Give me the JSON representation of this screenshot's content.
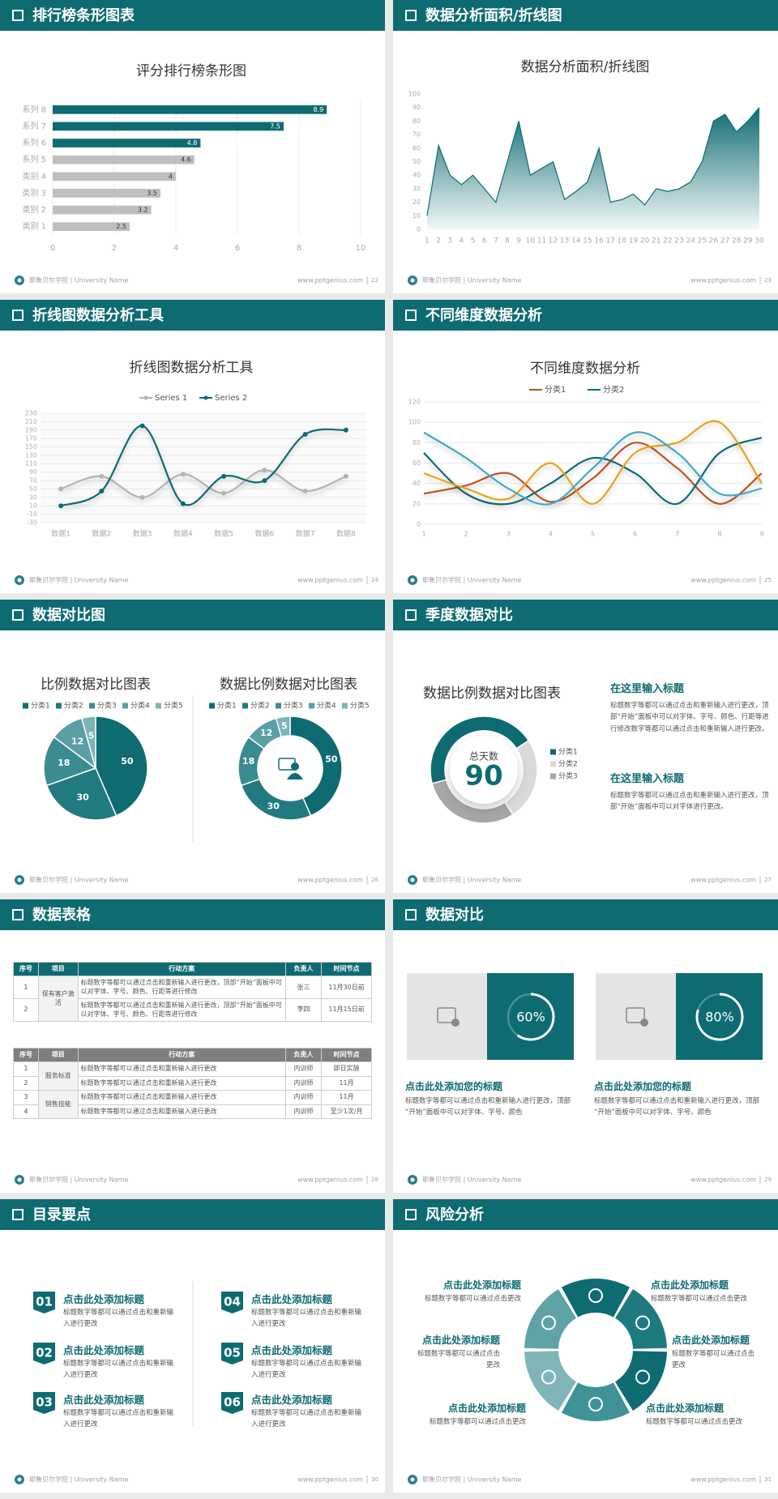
{
  "slides": [
    {
      "title": "排行榜条形图表",
      "footer": {
        "school": "耶鲁贝尔学院 | University Name",
        "url": "www.pptgenius.com",
        "page": "22"
      }
    },
    {
      "title": "数据分析面积/折线图",
      "footer": {
        "school": "耶鲁贝尔学院 | University Name",
        "url": "www.pptgenius.com",
        "page": "23"
      }
    },
    {
      "title": "折线图数据分析工具",
      "footer": {
        "school": "耶鲁贝尔学院 | University Name",
        "url": "www.pptgenius.com",
        "page": "24"
      }
    },
    {
      "title": "不同维度数据分析",
      "footer": {
        "school": "耶鲁贝尔学院 | University Name",
        "url": "www.pptgenius.com",
        "page": "25"
      }
    },
    {
      "title": "数据对比图",
      "footer": {
        "school": "耶鲁贝尔学院 | University Name",
        "url": "www.pptgenius.com",
        "page": "26"
      }
    },
    {
      "title": "季度数据对比",
      "footer": {
        "school": "耶鲁贝尔学院 | University Name",
        "url": "www.pptgenius.com",
        "page": "27"
      }
    },
    {
      "title": "数据表格",
      "footer": {
        "school": "耶鲁贝尔学院 | University Name",
        "url": "www.pptgenius.com",
        "page": "28"
      }
    },
    {
      "title": "数据对比",
      "footer": {
        "school": "耶鲁贝尔学院 | University Name",
        "url": "www.pptgenius.com",
        "page": "29"
      }
    },
    {
      "title": "目录要点",
      "footer": {
        "school": "耶鲁贝尔学院 | University Name",
        "url": "www.pptgenius.com",
        "page": "30"
      }
    },
    {
      "title": "风险分析",
      "footer": {
        "school": "耶鲁贝尔学院 | University Name",
        "url": "www.pptgenius.com",
        "page": "31"
      }
    }
  ],
  "chart_data": [
    {
      "type": "bar",
      "title": "评分排行榜条形图",
      "categories": [
        "系列 8",
        "系列 7",
        "系列 6",
        "系列 5",
        "类别 4",
        "类别 3",
        "类别 2",
        "类别 1"
      ],
      "values": [
        8.9,
        7.5,
        4.8,
        4.6,
        4,
        3.5,
        3.2,
        2.5
      ],
      "colors": [
        "#0e6b72",
        "#0e6b72",
        "#0e6b72",
        "#bfbfbf",
        "#bfbfbf",
        "#bfbfbf",
        "#bfbfbf",
        "#bfbfbf"
      ],
      "xlim": [
        0,
        10
      ],
      "xticks": [
        0,
        2,
        4,
        6,
        8,
        10
      ],
      "grid": true
    },
    {
      "type": "area",
      "title": "数据分析面积/折线图",
      "color": "#0e6b72",
      "x": [
        1,
        2,
        3,
        4,
        5,
        6,
        7,
        8,
        9,
        10,
        11,
        12,
        13,
        14,
        15,
        16,
        17,
        18,
        19,
        20,
        21,
        22,
        23,
        24,
        25,
        26,
        27,
        28,
        29,
        30
      ],
      "values": [
        10,
        62,
        40,
        33,
        40,
        30,
        20,
        50,
        80,
        40,
        45,
        50,
        22,
        28,
        35,
        60,
        20,
        22,
        26,
        18,
        30,
        28,
        30,
        35,
        50,
        80,
        85,
        72,
        80,
        90
      ],
      "xlim": [
        1,
        30
      ],
      "xticks": [
        1,
        2,
        3,
        4,
        5,
        6,
        7,
        8,
        9,
        10,
        11,
        12,
        13,
        14,
        15,
        16,
        17,
        18,
        19,
        20,
        21,
        22,
        23,
        24,
        25,
        26,
        27,
        28,
        29,
        30
      ],
      "ylim": [
        0,
        100
      ],
      "yticks": [
        0,
        10,
        20,
        30,
        40,
        50,
        60,
        70,
        80,
        90,
        100
      ],
      "grid": false
    },
    {
      "type": "line",
      "title": "折线图数据分析工具",
      "categories": [
        "数据1",
        "数据2",
        "数据3",
        "数据4",
        "数据5",
        "数据6",
        "数据7",
        "数据8"
      ],
      "series": [
        {
          "name": "Series 1",
          "color": "#b3b3b3",
          "values": [
            50,
            80,
            30,
            85,
            40,
            95,
            45,
            80
          ]
        },
        {
          "name": "Series 2",
          "color": "#0e6b72",
          "values": [
            10,
            45,
            200,
            15,
            80,
            70,
            180,
            190
          ]
        }
      ],
      "ylim": [
        -30,
        230
      ],
      "yticks": [
        -30,
        -10,
        10,
        30,
        50,
        70,
        90,
        110,
        130,
        150,
        170,
        190,
        210,
        230
      ],
      "grid": true,
      "markers": true
    },
    {
      "type": "line",
      "title": "不同维度数据分析",
      "x": [
        1,
        2,
        3,
        4,
        5,
        6,
        7,
        8,
        9
      ],
      "series": [
        {
          "name": "分类1",
          "color": "#c0511f",
          "values": [
            30,
            38,
            50,
            22,
            45,
            80,
            55,
            20,
            50
          ]
        },
        {
          "name": "分类2",
          "color": "#0e6b72",
          "values": [
            70,
            30,
            20,
            40,
            65,
            50,
            20,
            70,
            85
          ]
        },
        {
          "color": "#e8a21a",
          "values": [
            50,
            35,
            25,
            60,
            20,
            70,
            80,
            100,
            40
          ]
        },
        {
          "color": "#3fa9c8",
          "values": [
            90,
            65,
            35,
            20,
            55,
            90,
            70,
            30,
            35
          ]
        }
      ],
      "xlim": [
        1,
        9
      ],
      "xticks": [
        1,
        2,
        3,
        4,
        5,
        6,
        7,
        8,
        9
      ],
      "ylim": [
        0,
        120
      ],
      "yticks": [
        0,
        20,
        40,
        60,
        80,
        100,
        120
      ],
      "grid": true,
      "markers": false
    },
    {
      "type": "pie",
      "title": "比例数据对比图表",
      "categories": [
        "分类1",
        "分类2",
        "分类3",
        "分类4",
        "分类5"
      ],
      "values": [
        50,
        30,
        18,
        12,
        5
      ],
      "colors": [
        "#0e6b72",
        "#217a80",
        "#3b8c91",
        "#5a9fa3",
        "#7db4b7"
      ],
      "data_labels": true
    },
    {
      "type": "pie",
      "title": "数据比例数据对比图表",
      "categories": [
        "分类1",
        "分类2",
        "分类3",
        "分类4",
        "分类5"
      ],
      "values": [
        50,
        30,
        18,
        12,
        5
      ],
      "colors": [
        "#0e6b72",
        "#217a80",
        "#3b8c91",
        "#5a9fa3",
        "#7db4b7"
      ],
      "data_labels": true
    },
    {
      "type": "pie",
      "title": "数据比例数据对比图表",
      "categories": [
        "分类1",
        "分类2",
        "分类3"
      ],
      "values": [
        45,
        25,
        30
      ],
      "colors": [
        "#0e6b72",
        "#d9d9d9",
        "#a6a6a6"
      ],
      "data_labels": false,
      "center_text": "总天数",
      "center_number": 90
    }
  ],
  "quarter_text": [
    {
      "heading": "在这里输入标题",
      "body": "标题数字等都可以通过点击和重新输入进行更改，顶部“开始”面板中可以对字体、字号、颜色、行距等进行修改数字等都可以通过点击和重新输入进行更改。"
    },
    {
      "heading": "在这里输入标题",
      "body": "标题数字等都可以通过点击和重新输入进行更改，顶部“开始”面板中可以对字体进行更改。"
    }
  ],
  "tables": [
    {
      "headers": [
        "序号",
        "项目",
        "行动方案",
        "负责人",
        "时间节点"
      ],
      "groups": [
        {
          "name": "保有客户激活",
          "rows": [
            [
              "1",
              "标题数字等都可以通过点击和重新输入进行更改，顶部“开始”面板中可以对字体、字号、颜色、行距等进行修改",
              "张三",
              "11月30日前"
            ],
            [
              "2",
              "标题数字等都可以通过点击和重新输入进行更改，顶部“开始”面板中可以对字体、字号、颜色、行距等进行修改",
              "李四",
              "11月15日前"
            ]
          ]
        }
      ]
    },
    {
      "headers": [
        "序号",
        "项目",
        "行动方案",
        "负责人",
        "时间节点"
      ],
      "groups": [
        {
          "name": "服务标准",
          "rows": [
            [
              "1",
              "标题数字等都可以通过点击和重新输入进行更改",
              "内训师",
              "即日实施"
            ],
            [
              "2",
              "标题数字等都可以通过点击和重新输入进行更改",
              "内训师",
              "11月"
            ]
          ]
        },
        {
          "name": "销售技能",
          "rows": [
            [
              "3",
              "标题数字等都可以通过点击和重新输入进行更改",
              "内训师",
              "11月"
            ],
            [
              "4",
              "标题数字等都可以通过点击和重新输入进行更改",
              "内训师",
              "至少1次/月"
            ]
          ]
        }
      ]
    }
  ],
  "compare": [
    {
      "percent": 60,
      "percent_label": "60%",
      "heading": "点击此处添加您的标题",
      "body": "标题数字等都可以通过点击和重新输入进行更改，顶部“开始”面板中可以对字体、字号、颜色"
    },
    {
      "percent": 80,
      "percent_label": "80%",
      "heading": "点击此处添加您的标题",
      "body": "标题数字等都可以通过点击和重新输入进行更改，顶部“开始”面板中可以对字体、字号、颜色"
    }
  ],
  "toc": [
    {
      "number": "01",
      "heading": "点击此处添加标题",
      "body": "标题数字等都可以通过点击和重新输入进行更改"
    },
    {
      "number": "02",
      "heading": "点击此处添加标题",
      "body": "标题数字等都可以通过点击和重新输入进行更改"
    },
    {
      "number": "03",
      "heading": "点击此处添加标题",
      "body": "标题数字等都可以通过点击和重新输入进行更改"
    },
    {
      "number": "04",
      "heading": "点击此处添加标题",
      "body": "标题数字等都可以通过点击和重新输入进行更改"
    },
    {
      "number": "05",
      "heading": "点击此处添加标题",
      "body": "标题数字等都可以通过点击和重新输入进行更改"
    },
    {
      "number": "06",
      "heading": "点击此处添加标题",
      "body": "标题数字等都可以通过点击和重新输入进行更改"
    }
  ],
  "risks": [
    {
      "heading": "点击此处添加标题",
      "body": "标题数字等都可以通过点击更改"
    },
    {
      "heading": "点击此处添加标题",
      "body": "标题数字等都可以通过点击更改"
    },
    {
      "heading": "点击此处添加标题",
      "body": "标题数字等都可以通过点击更改"
    },
    {
      "heading": "点击此处添加标题",
      "body": "标题数字等都可以通过点击更改"
    },
    {
      "heading": "点击此处添加标题",
      "body": "标题数字等都可以通过点击更改"
    },
    {
      "heading": "点击此处添加标题",
      "body": "标题数字等都可以通过点击更改"
    }
  ]
}
